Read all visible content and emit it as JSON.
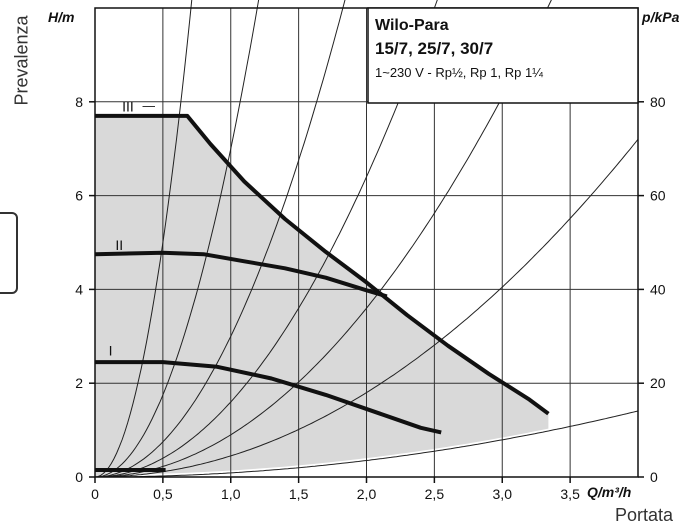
{
  "page": {
    "left_label": "Prevalenza",
    "bottom_label": "Portata"
  },
  "chart_data": {
    "type": "line",
    "title": "Wilo-Para",
    "subtitle": "15/7, 25/7, 30/7",
    "note": "1~230 V - Rp½, Rp 1, Rp 1¼",
    "y_axis_left": {
      "unit_label": "H/m",
      "range": [
        0,
        10
      ],
      "ticks": [
        0,
        2,
        4,
        6,
        8
      ]
    },
    "y_axis_right": {
      "unit_label": "p/kPa",
      "range": [
        0,
        100
      ],
      "ticks": [
        0,
        20,
        40,
        60,
        80
      ]
    },
    "x_axis": {
      "unit_label": "Q/m³/h",
      "range": [
        0,
        4.0
      ],
      "ticks": [
        0,
        0.5,
        1.0,
        1.5,
        2.0,
        2.5,
        3.0,
        3.5
      ],
      "tick_labels": [
        "0",
        "0,5",
        "1,0",
        "1,5",
        "2,0",
        "2,5",
        "3,0",
        "3,5"
      ]
    },
    "grid": true,
    "shaded_envelope": {
      "color": "#d9d9d9"
    },
    "series": [
      {
        "name": "III",
        "label_at": [
          0.2,
          7.9
        ],
        "x": [
          0,
          0.68,
          0.85,
          1.1,
          1.4,
          1.7,
          2.0,
          2.3,
          2.6,
          2.9,
          3.2,
          3.34
        ],
        "y": [
          7.7,
          7.7,
          7.1,
          6.3,
          5.5,
          4.8,
          4.15,
          3.45,
          2.8,
          2.2,
          1.65,
          1.35
        ]
      },
      {
        "name": "II",
        "label_at": [
          0.15,
          4.95
        ],
        "x": [
          0,
          0.5,
          0.8,
          1.1,
          1.4,
          1.7,
          2.0,
          2.15
        ],
        "y": [
          4.75,
          4.78,
          4.75,
          4.6,
          4.45,
          4.25,
          3.98,
          3.85
        ]
      },
      {
        "name": "I",
        "label_at": [
          0.1,
          2.7
        ],
        "x": [
          0,
          0.5,
          0.9,
          1.3,
          1.7,
          2.1,
          2.4,
          2.55
        ],
        "y": [
          2.45,
          2.45,
          2.35,
          2.1,
          1.75,
          1.35,
          1.05,
          0.95
        ]
      },
      {
        "name": "",
        "x": [
          0,
          0.52
        ],
        "y": [
          0.15,
          0.15
        ]
      }
    ],
    "system_curves_k": [
      0.088,
      0.45,
      0.9,
      1.6,
      3.0,
      7.0,
      20.0
    ],
    "colors": {
      "curve": "#111111",
      "grid": "#333333",
      "thin": "#222222",
      "shade": "#d9d9d9"
    }
  }
}
